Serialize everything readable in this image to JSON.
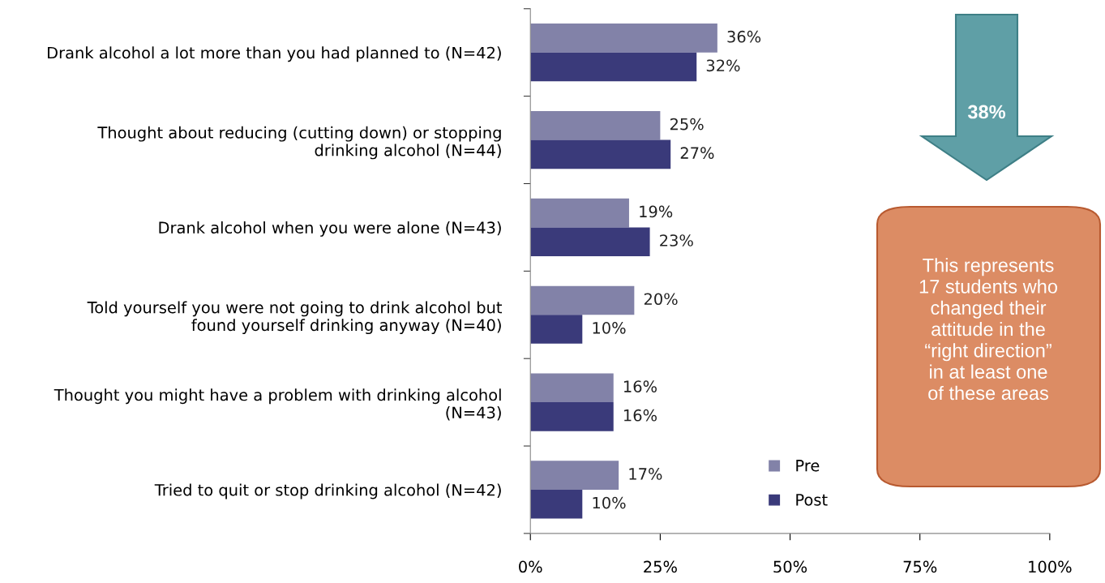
{
  "chart_data": {
    "type": "bar",
    "orientation": "horizontal",
    "categories": [
      "Drank alcohol a lot more than you had planned to (N=42)",
      "Thought about reducing (cutting down) or stopping\ndrinking alcohol (N=44)",
      "Drank alcohol when you were alone (N=43)",
      "Told yourself you were not going to drink alcohol but\nfound yourself drinking anyway (N=40)",
      "Thought you might have a problem with drinking alcohol\n(N=43)",
      "Tried to quit or stop drinking alcohol (N=42)"
    ],
    "series": [
      {
        "name": "Pre",
        "color": "#8282a8",
        "values": [
          36,
          25,
          19,
          20,
          16,
          17
        ],
        "value_labels": [
          "36%",
          "25%",
          "19%",
          "20%",
          "16%",
          "17%"
        ]
      },
      {
        "name": "Post",
        "color": "#3a3a7a",
        "values": [
          32,
          27,
          23,
          10,
          16,
          10
        ],
        "value_labels": [
          "32%",
          "27%",
          "23%",
          "10%",
          "16%",
          "10%"
        ]
      }
    ],
    "xlim": [
      0,
      100
    ],
    "xticks": [
      {
        "value": 0,
        "label": "0%"
      },
      {
        "value": 25,
        "label": "25%"
      },
      {
        "value": 50,
        "label": "50%"
      },
      {
        "value": 75,
        "label": "75%"
      },
      {
        "value": 100,
        "label": "100%"
      }
    ],
    "legend": "bottom right",
    "annotations": [
      "38%",
      "This represents\n17 students who\nchanged their\nattitude in the\n“right direction”\nin at least one\nof these areas"
    ]
  }
}
